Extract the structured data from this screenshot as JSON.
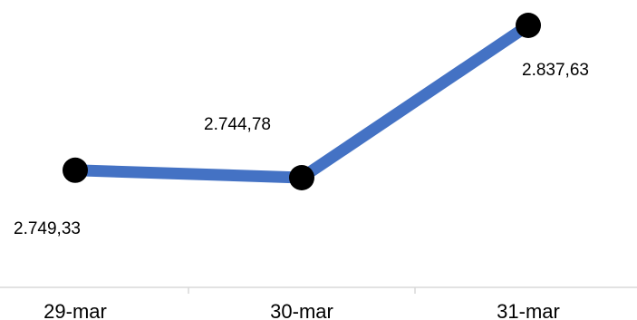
{
  "chart_data": {
    "type": "line",
    "categories": [
      "29-mar",
      "30-mar",
      "31-mar"
    ],
    "values": [
      2749.33,
      2744.78,
      2837.63
    ],
    "data_labels": [
      "2.749,33",
      "2.744,78",
      "2.837,63"
    ],
    "title": "",
    "xlabel": "",
    "ylabel": "",
    "ylim": [
      2700,
      2850
    ],
    "grid": false,
    "legend": "none",
    "line_color": "#4472C4",
    "marker_color": "#000000",
    "axis_color": "#d9d9d9"
  }
}
